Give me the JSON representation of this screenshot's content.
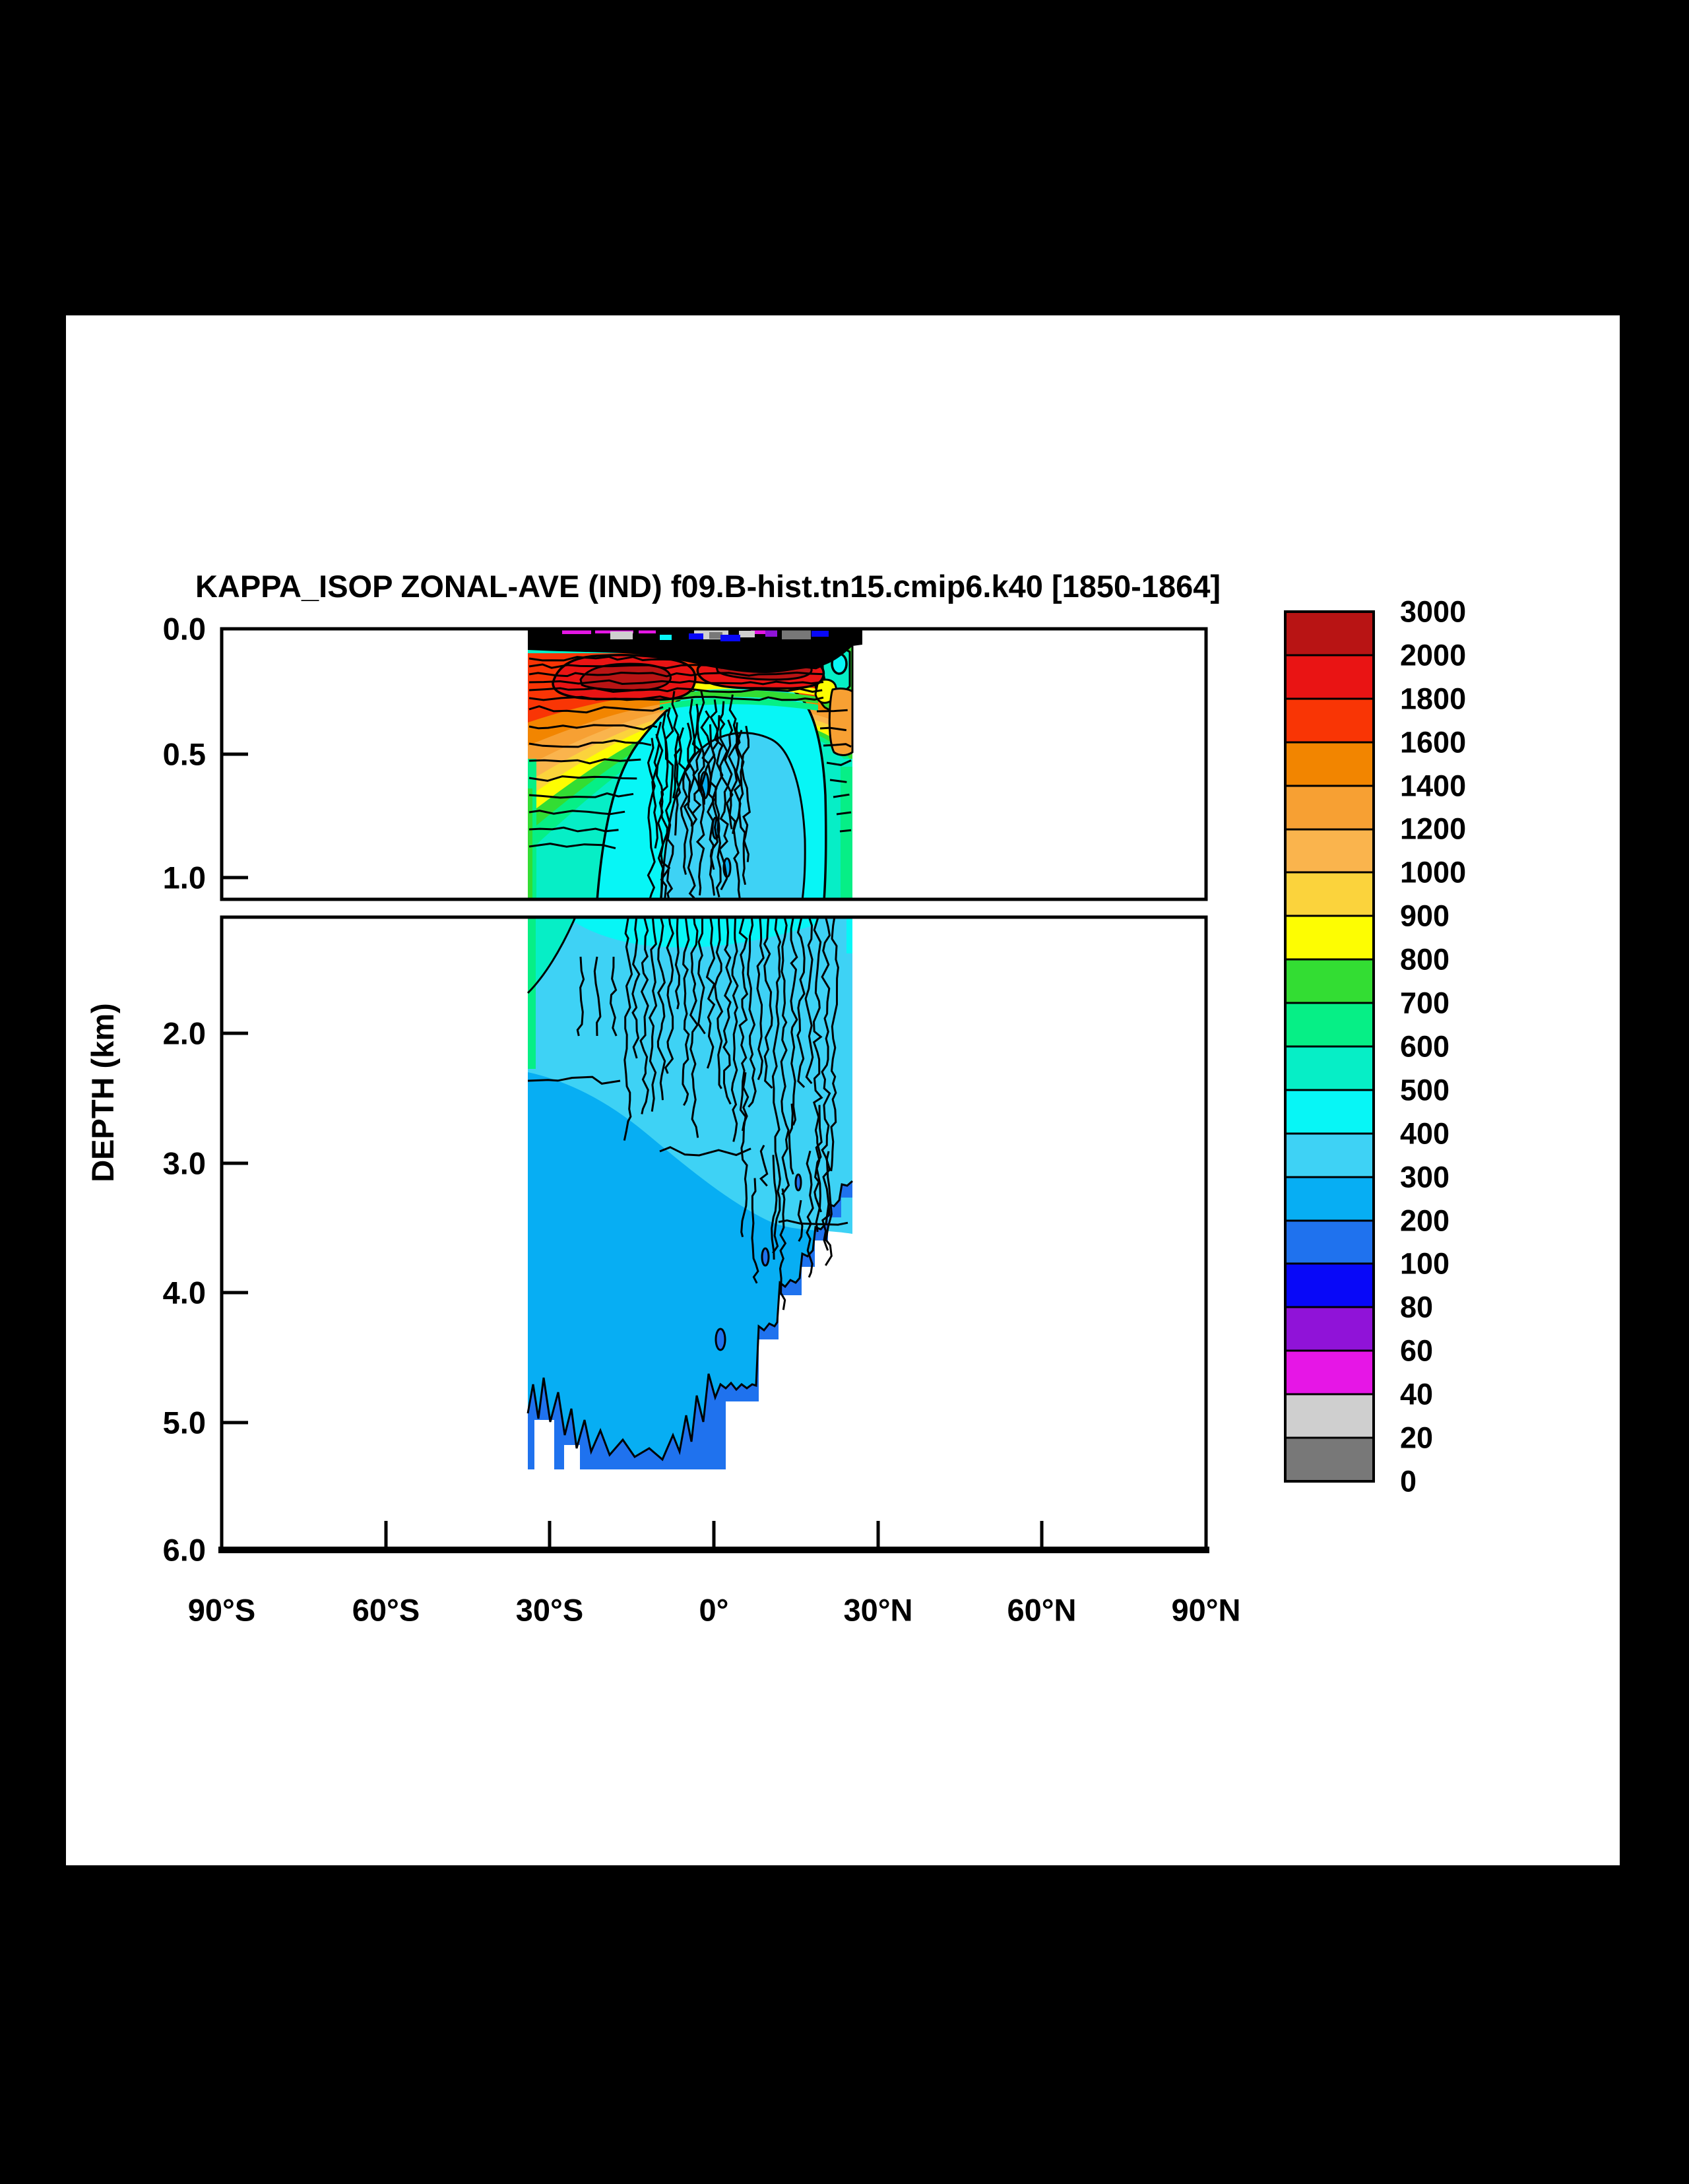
{
  "title": "KAPPA_ISOP ZONAL-AVE (IND) f09.B-hist.tn15.cmip6.k40 [1850-1864]",
  "axes": {
    "y_label": "DEPTH (km)",
    "x_ticks": [
      "90°S",
      "60°S",
      "30°S",
      "0°",
      "30°N",
      "60°N",
      "90°N"
    ],
    "y_ticks_top_panel": [
      "0.0",
      "0.5",
      "1.0"
    ],
    "y_ticks_bottom_panel": [
      "2.0",
      "3.0",
      "4.0",
      "5.0",
      "6.0"
    ]
  },
  "colorbar": {
    "labels": [
      "3000",
      "2000",
      "1800",
      "1600",
      "1400",
      "1200",
      "1000",
      "900",
      "800",
      "700",
      "600",
      "500",
      "400",
      "300",
      "200",
      "100",
      "80",
      "60",
      "40",
      "20",
      "0"
    ]
  },
  "palette": {
    "k2000": "#b81414",
    "k1800": "#e91414",
    "k1600": "#f93505",
    "k1400": "#f28500",
    "k1200": "#f7a033",
    "k1000": "#fab44d",
    "k900": "#fbd33c",
    "k800": "#fdfd02",
    "k700": "#33dd33",
    "k600": "#06ef86",
    "k500": "#06eec6",
    "k400": "#07f6f6",
    "k300": "#3ed2f5",
    "k200": "#07aef3",
    "k100": "#1f72ee",
    "k80": "#0808f8",
    "k60": "#9013d8",
    "k40": "#e616e6",
    "k20": "#cfcfcf",
    "k0": "#787878",
    "frame": "#000000",
    "page_bg": "#000000",
    "plot_bg": "#ffffff"
  },
  "chart_data": {
    "type": "contour",
    "title": "KAPPA_ISOP ZONAL-AVE (IND) f09.B-hist.tn15.cmip6.k40 [1850-1864]",
    "x_axis": {
      "tick_labels": [
        "90°S",
        "60°S",
        "30°S",
        "0°",
        "30°N",
        "60°N",
        "90°N"
      ],
      "range_deg": [
        -90,
        90
      ]
    },
    "y_axis": {
      "label": "DEPTH (km)",
      "split_panels": true,
      "panels": [
        {
          "range_km": [
            0.0,
            1.1
          ],
          "ticks_km": [
            0.0,
            0.5,
            1.0
          ],
          "note": "upper ocean stretched"
        },
        {
          "range_km": [
            1.1,
            6.0
          ],
          "ticks_km": [
            2.0,
            3.0,
            4.0,
            5.0,
            6.0
          ]
        }
      ]
    },
    "contour_levels": [
      0,
      20,
      40,
      60,
      80,
      100,
      200,
      300,
      400,
      500,
      600,
      700,
      800,
      900,
      1000,
      1200,
      1400,
      1600,
      1800,
      2000,
      3000
    ],
    "data_extent": {
      "latitude_deg": [
        -34,
        25
      ],
      "depth_km": [
        0,
        5.4
      ]
    },
    "grid": false,
    "legend_position": "right-colorbar",
    "features": [
      {
        "region": "surface layer 0-0.08 km, 34S-25N",
        "approx_value": "2000-3000+, contours so densely packed the band appears black with magenta/gray/blue flecks at the very top edge"
      },
      {
        "region": "0.08-0.15 km, 25S-20N",
        "approx_value": "1800-2000 red core, locally >2000 (dark red patches)"
      },
      {
        "region": "0.1-0.35 km southern flank 34S-10S",
        "approx_value": "800-1600, banded decrease with depth (dark orange, orange, gold, yellow, green)"
      },
      {
        "region": "0.3-1.1 km equatorial interior 10S-20N",
        "approx_value": "300-500 cyan dome with noisy vertical 300/400 contour wiggles near 0-8N"
      },
      {
        "region": "southwestern edge near 34S, 0.4-2 km",
        "approx_value": "500-700 teal / spring-green column"
      },
      {
        "region": "northern edge 20-25N, 0-1.1 km",
        "approx_value": "mixed 400-1600 column: green/teal with a 1000-1400 orange patch and a small 400-500 cyan eddy near the surface"
      },
      {
        "region": "1.1-2.0 km, 5S-25N",
        "approx_value": "300-400 with many noisy vertical contour filaments"
      },
      {
        "region": "2.0-5.4 km interior",
        "approx_value": "200-300"
      },
      {
        "region": "near-bottom pockets (30S-5N) and north-eastern bathymetric staircase (5N-25N)",
        "approx_value": "100-200"
      },
      {
        "region": "below stepped bathymetry: deepest ~5.4 km between 30S and 5N, shoaling stepwise to ~3.2 km at 25N",
        "approx_value": "no data (white)"
      }
    ]
  }
}
